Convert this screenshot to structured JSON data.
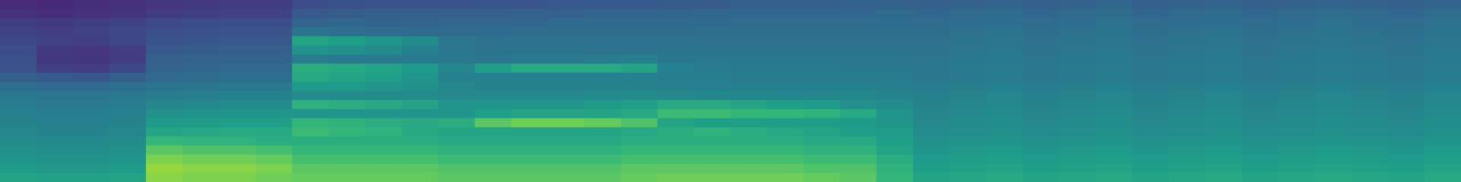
{
  "chart_data": {
    "type": "heatmap",
    "color_range": [
      0,
      100
    ],
    "tick_labels": false,
    "cells": [
      [
        12,
        11,
        13,
        14,
        16,
        17,
        18,
        18,
        24,
        25,
        26,
        26,
        26,
        27,
        27,
        28,
        28,
        28,
        29,
        29,
        30,
        30,
        30,
        31,
        31,
        30,
        31,
        32,
        30,
        31,
        33,
        30,
        31,
        32,
        30,
        31,
        32,
        31,
        30,
        32
      ],
      [
        14,
        13,
        14,
        15,
        18,
        19,
        20,
        20,
        28,
        29,
        30,
        30,
        30,
        30,
        31,
        31,
        32,
        32,
        32,
        33,
        33,
        33,
        33,
        33,
        34,
        33,
        34,
        35,
        33,
        34,
        35,
        33,
        34,
        35,
        33,
        34,
        35,
        34,
        33,
        35
      ],
      [
        18,
        17,
        18,
        20,
        22,
        23,
        24,
        24,
        32,
        33,
        32,
        32,
        33,
        33,
        33,
        34,
        34,
        34,
        34,
        34,
        35,
        35,
        35,
        35,
        35,
        35,
        36,
        36,
        35,
        36,
        37,
        35,
        36,
        36,
        35,
        36,
        37,
        36,
        35,
        37
      ],
      [
        20,
        19,
        20,
        22,
        24,
        25,
        26,
        26,
        38,
        36,
        35,
        34,
        34,
        34,
        35,
        35,
        35,
        35,
        35,
        36,
        36,
        36,
        36,
        36,
        36,
        36,
        37,
        38,
        36,
        37,
        38,
        36,
        37,
        38,
        36,
        37,
        38,
        37,
        36,
        38
      ],
      [
        22,
        20,
        19,
        22,
        26,
        27,
        28,
        28,
        58,
        56,
        52,
        48,
        40,
        37,
        37,
        37,
        37,
        37,
        37,
        37,
        37,
        37,
        37,
        37,
        37,
        37,
        38,
        39,
        37,
        38,
        39,
        37,
        38,
        39,
        37,
        38,
        39,
        38,
        37,
        39
      ],
      [
        24,
        17,
        16,
        18,
        28,
        29,
        30,
        30,
        52,
        50,
        48,
        44,
        39,
        38,
        38,
        38,
        38,
        38,
        38,
        38,
        38,
        38,
        38,
        38,
        38,
        38,
        39,
        40,
        38,
        39,
        40,
        38,
        39,
        40,
        38,
        39,
        40,
        39,
        38,
        40
      ],
      [
        25,
        17,
        16,
        18,
        30,
        31,
        32,
        32,
        42,
        41,
        41,
        41,
        40,
        40,
        41,
        41,
        42,
        43,
        40,
        40,
        40,
        40,
        40,
        40,
        40,
        39,
        40,
        41,
        39,
        40,
        41,
        39,
        40,
        41,
        39,
        40,
        41,
        40,
        39,
        41
      ],
      [
        26,
        19,
        18,
        22,
        32,
        33,
        34,
        34,
        62,
        60,
        58,
        54,
        46,
        56,
        60,
        60,
        60,
        58,
        44,
        42,
        41,
        41,
        41,
        40,
        40,
        40,
        41,
        42,
        40,
        41,
        42,
        40,
        41,
        42,
        40,
        41,
        42,
        41,
        40,
        42
      ],
      [
        30,
        28,
        27,
        30,
        34,
        35,
        36,
        36,
        60,
        58,
        56,
        52,
        44,
        44,
        44,
        44,
        44,
        44,
        43,
        43,
        42,
        42,
        42,
        42,
        42,
        40,
        41,
        42,
        40,
        41,
        42,
        40,
        41,
        42,
        40,
        41,
        42,
        41,
        40,
        42
      ],
      [
        36,
        34,
        34,
        36,
        38,
        39,
        40,
        40,
        54,
        54,
        52,
        50,
        46,
        45,
        45,
        45,
        45,
        45,
        44,
        44,
        44,
        44,
        44,
        44,
        43,
        42,
        43,
        44,
        42,
        43,
        44,
        42,
        43,
        44,
        42,
        43,
        44,
        43,
        42,
        44
      ],
      [
        40,
        39,
        39,
        40,
        42,
        43,
        44,
        44,
        48,
        48,
        48,
        48,
        47,
        47,
        47,
        47,
        48,
        48,
        47,
        46,
        46,
        46,
        46,
        46,
        45,
        44,
        45,
        46,
        44,
        45,
        46,
        44,
        45,
        46,
        44,
        45,
        46,
        45,
        44,
        46
      ],
      [
        42,
        41,
        41,
        42,
        46,
        47,
        48,
        48,
        64,
        62,
        60,
        58,
        52,
        52,
        52,
        52,
        54,
        56,
        60,
        60,
        58,
        56,
        54,
        50,
        48,
        45,
        46,
        47,
        45,
        46,
        47,
        45,
        46,
        47,
        45,
        46,
        47,
        46,
        45,
        47
      ],
      [
        44,
        43,
        43,
        44,
        50,
        51,
        52,
        52,
        52,
        52,
        52,
        52,
        52,
        56,
        58,
        58,
        58,
        60,
        68,
        68,
        66,
        66,
        64,
        60,
        52,
        46,
        47,
        48,
        46,
        47,
        48,
        46,
        47,
        48,
        46,
        47,
        48,
        47,
        46,
        48
      ],
      [
        45,
        44,
        44,
        45,
        54,
        55,
        56,
        56,
        66,
        64,
        62,
        60,
        62,
        74,
        78,
        78,
        76,
        72,
        58,
        56,
        56,
        55,
        55,
        54,
        52,
        47,
        48,
        49,
        47,
        48,
        49,
        47,
        48,
        49,
        47,
        48,
        49,
        48,
        47,
        49
      ],
      [
        46,
        45,
        45,
        46,
        58,
        59,
        60,
        60,
        68,
        66,
        64,
        60,
        58,
        58,
        58,
        58,
        58,
        60,
        62,
        64,
        62,
        60,
        58,
        56,
        54,
        48,
        49,
        50,
        48,
        49,
        50,
        48,
        49,
        50,
        48,
        49,
        50,
        49,
        48,
        50
      ],
      [
        48,
        47,
        47,
        48,
        66,
        64,
        64,
        62,
        62,
        62,
        62,
        62,
        60,
        60,
        60,
        60,
        60,
        62,
        62,
        62,
        62,
        62,
        60,
        60,
        56,
        50,
        51,
        52,
        50,
        51,
        52,
        50,
        51,
        52,
        50,
        51,
        52,
        51,
        50,
        52
      ],
      [
        50,
        49,
        49,
        50,
        74,
        72,
        72,
        70,
        66,
        66,
        66,
        66,
        64,
        64,
        64,
        64,
        64,
        66,
        66,
        66,
        66,
        66,
        64,
        64,
        58,
        52,
        53,
        54,
        52,
        53,
        54,
        52,
        53,
        54,
        52,
        53,
        54,
        53,
        52,
        54
      ],
      [
        52,
        51,
        51,
        52,
        80,
        78,
        78,
        76,
        70,
        70,
        70,
        70,
        68,
        68,
        68,
        68,
        68,
        70,
        70,
        70,
        70,
        70,
        68,
        68,
        62,
        54,
        55,
        56,
        54,
        55,
        56,
        54,
        55,
        56,
        54,
        55,
        56,
        55,
        54,
        56
      ],
      [
        54,
        53,
        53,
        54,
        84,
        82,
        82,
        80,
        74,
        74,
        74,
        74,
        72,
        72,
        72,
        72,
        72,
        74,
        74,
        74,
        74,
        74,
        72,
        72,
        64,
        56,
        57,
        58,
        56,
        57,
        58,
        56,
        57,
        58,
        56,
        57,
        58,
        57,
        56,
        58
      ],
      [
        58,
        57,
        57,
        58,
        82,
        80,
        80,
        78,
        76,
        76,
        76,
        76,
        74,
        74,
        74,
        74,
        74,
        76,
        78,
        78,
        78,
        78,
        76,
        74,
        66,
        58,
        59,
        60,
        58,
        59,
        60,
        58,
        59,
        60,
        58,
        59,
        60,
        59,
        58,
        60
      ]
    ]
  }
}
